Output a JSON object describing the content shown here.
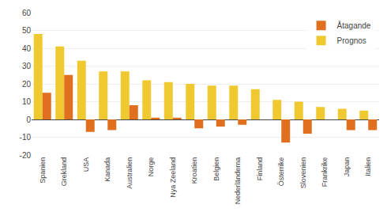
{
  "chart_data": {
    "type": "bar",
    "categories": [
      "Spanien",
      "Grekland",
      "USA",
      "Kanada",
      "Australien",
      "Norge",
      "Nya Zeeland",
      "Kroatien",
      "Belgien",
      "Nederländerna",
      "Finland",
      "Österrike",
      "Slovenien",
      "Frankrike",
      "Japan",
      "Italien"
    ],
    "series": [
      {
        "name": "Prognos",
        "color": "#F0C830",
        "values": [
          48,
          41,
          33,
          27,
          27,
          22,
          21,
          20,
          19,
          19,
          17,
          11,
          10,
          7,
          6,
          5
        ]
      },
      {
        "name": "Åtagande",
        "color": "#E07020",
        "values": [
          15,
          25,
          -7,
          -6,
          8,
          1,
          1,
          -5,
          -4,
          -3,
          0,
          -13,
          -8,
          0,
          -6,
          -6
        ]
      }
    ],
    "ylim": [
      -20,
      60
    ],
    "yticks": [
      -20,
      -10,
      0,
      10,
      20,
      30,
      40,
      50,
      60
    ],
    "grid": true,
    "legend": "upper right"
  }
}
